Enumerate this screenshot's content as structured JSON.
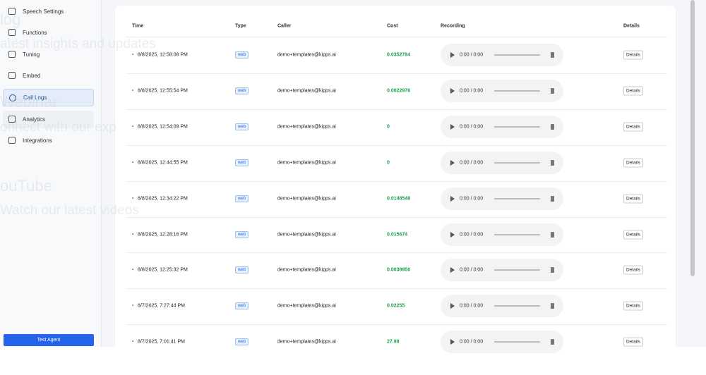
{
  "sidebar": {
    "items": [
      "Speech Settings",
      "Functions",
      "Tuning",
      "Embed",
      "Call Logs",
      "Analytics",
      "Integrations"
    ],
    "button": "Test Agent"
  },
  "overlay": [
    "log",
    "atest insights and updates",
    "Webinar",
    "onnect with our exp",
    "ouTube",
    "Watch our latest videos"
  ],
  "table": {
    "headers": [
      "Time",
      "Type",
      "Caller",
      "Cost",
      "Recording",
      "Details"
    ],
    "rows": [
      [
        "8/8/2025, 12:58:08 PM",
        "web",
        "demo+templates@kipps.ai",
        "0.0352784",
        "0:00 / 0:00",
        "Details"
      ],
      [
        "8/8/2025, 12:55:54 PM",
        "web",
        "demo+templates@kipps.ai",
        "0.0022976",
        "0:00 / 0:00",
        "Details"
      ],
      [
        "8/8/2025, 12:54:09 PM",
        "web",
        "demo+templates@kipps.ai",
        "0",
        "0:00 / 0:00",
        "Details"
      ],
      [
        "8/8/2025, 12:44:55 PM",
        "web",
        "demo+templates@kipps.ai",
        "0",
        "0:00 / 0:00",
        "Details"
      ],
      [
        "8/8/2025, 12:34:22 PM",
        "web",
        "demo+templates@kipps.ai",
        "0.0148548",
        "0:00 / 0:00",
        "Details"
      ],
      [
        "8/8/2025, 12:28:16 PM",
        "web",
        "demo+templates@kipps.ai",
        "0.015674",
        "0:00 / 0:00",
        "Details"
      ],
      [
        "8/8/2025, 12:25:32 PM",
        "web",
        "demo+templates@kipps.ai",
        "0.0038956",
        "0:00 / 0:00",
        "Details"
      ],
      [
        "8/7/2025, 7:27:44 PM",
        "web",
        "demo+templates@kipps.ai",
        "0.02255",
        "0:00 / 0:00",
        "Details"
      ],
      [
        "8/7/2025, 7:01:41 PM",
        "web",
        "demo+templates@kipps.ai",
        "27.98",
        "0:00 / 0:00",
        "Details"
      ]
    ]
  }
}
